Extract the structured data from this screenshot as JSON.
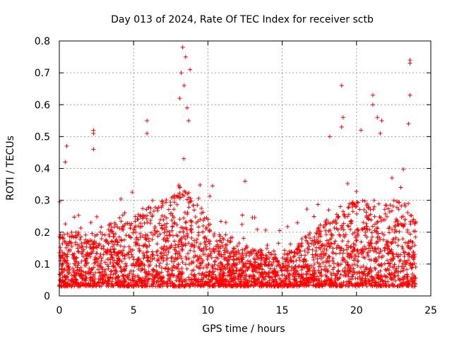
{
  "chart_data": {
    "type": "scatter",
    "title": "Day 013 of 2024, Rate Of TEC Index for receiver sctb",
    "xlabel": "GPS time / hours",
    "ylabel": "ROTI / TECUs",
    "xlim": [
      0,
      25
    ],
    "ylim": [
      0,
      0.8
    ],
    "xticks": [
      0,
      5,
      10,
      15,
      20,
      25
    ],
    "yticks": [
      0,
      0.1,
      0.2,
      0.3,
      0.4,
      0.5,
      0.6,
      0.7,
      0.8
    ],
    "xtick_labels": [
      "0",
      "5",
      "10",
      "15",
      "20",
      "25"
    ],
    "ytick_labels": [
      "0",
      "0.1",
      "0.2",
      "0.3",
      "0.4",
      "0.5",
      "0.6",
      "0.7",
      "0.8"
    ],
    "grid": true,
    "marker": "+",
    "marker_color": "#ff0000",
    "series": [
      {
        "name": "ROTI",
        "profile_hours": [
          0,
          1,
          2,
          3,
          4,
          5,
          6,
          7,
          8,
          9,
          10,
          11,
          12,
          13,
          14,
          15,
          16,
          17,
          18,
          19,
          20,
          21,
          22,
          23,
          24
        ],
        "typical_upper_roti": [
          0.2,
          0.2,
          0.2,
          0.22,
          0.24,
          0.25,
          0.28,
          0.3,
          0.35,
          0.32,
          0.25,
          0.18,
          0.17,
          0.15,
          0.14,
          0.12,
          0.17,
          0.2,
          0.24,
          0.28,
          0.3,
          0.3,
          0.3,
          0.3,
          0.28
        ],
        "typical_lower_roti": 0.03,
        "outliers": [
          {
            "x": 0.5,
            "y": 0.47
          },
          {
            "x": 0.4,
            "y": 0.42
          },
          {
            "x": 2.3,
            "y": 0.52
          },
          {
            "x": 2.3,
            "y": 0.51
          },
          {
            "x": 2.3,
            "y": 0.46
          },
          {
            "x": 5.9,
            "y": 0.55
          },
          {
            "x": 5.9,
            "y": 0.51
          },
          {
            "x": 8.3,
            "y": 0.78
          },
          {
            "x": 8.5,
            "y": 0.75
          },
          {
            "x": 8.8,
            "y": 0.71
          },
          {
            "x": 8.2,
            "y": 0.7
          },
          {
            "x": 8.4,
            "y": 0.66
          },
          {
            "x": 8.1,
            "y": 0.62
          },
          {
            "x": 8.6,
            "y": 0.59
          },
          {
            "x": 8.7,
            "y": 0.55
          },
          {
            "x": 12.5,
            "y": 0.36
          },
          {
            "x": 19.0,
            "y": 0.66
          },
          {
            "x": 19.1,
            "y": 0.56
          },
          {
            "x": 19.0,
            "y": 0.53
          },
          {
            "x": 21.1,
            "y": 0.63
          },
          {
            "x": 21.1,
            "y": 0.6
          },
          {
            "x": 21.4,
            "y": 0.56
          },
          {
            "x": 21.7,
            "y": 0.55
          },
          {
            "x": 21.6,
            "y": 0.51
          },
          {
            "x": 23.6,
            "y": 0.74
          },
          {
            "x": 23.6,
            "y": 0.73
          },
          {
            "x": 23.6,
            "y": 0.63
          },
          {
            "x": 23.5,
            "y": 0.54
          },
          {
            "x": 20.3,
            "y": 0.52
          },
          {
            "x": 18.2,
            "y": 0.5
          }
        ]
      }
    ]
  }
}
